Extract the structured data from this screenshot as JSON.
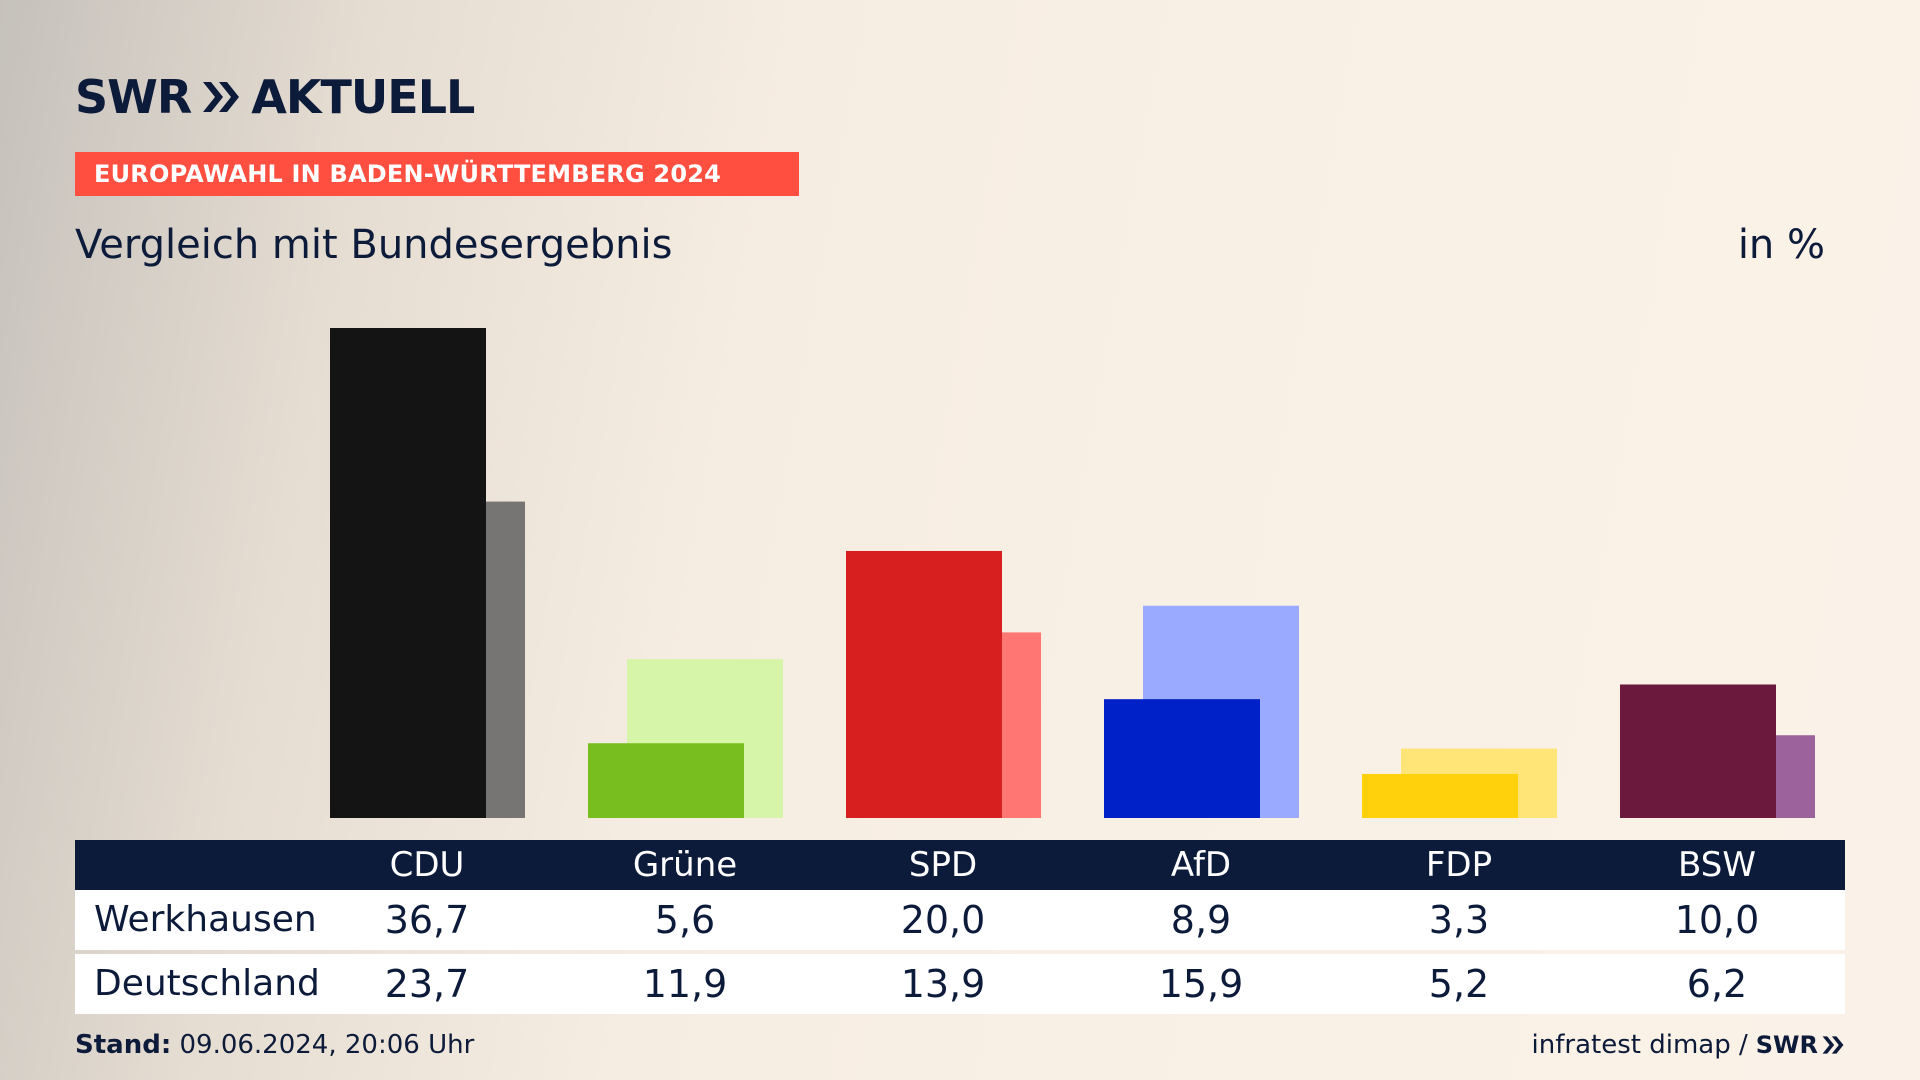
{
  "header": {
    "logo_text": "SWR",
    "logo_suffix": "AKTUELL",
    "banner": "EUROPAWAHL IN BADEN-WÜRTTEMBERG 2024",
    "subtitle": "Vergleich mit Bundesergebnis",
    "unit": "in %"
  },
  "chart_data": {
    "type": "bar",
    "title": "Vergleich mit Bundesergebnis",
    "unit": "in %",
    "categories": [
      "CDU",
      "Grüne",
      "SPD",
      "AfD",
      "FDP",
      "BSW"
    ],
    "series": [
      {
        "name": "Werkhausen",
        "values": [
          36.7,
          5.6,
          20.0,
          8.9,
          3.3,
          10.0
        ]
      },
      {
        "name": "Deutschland",
        "values": [
          23.7,
          11.9,
          13.9,
          15.9,
          5.2,
          6.2
        ]
      }
    ],
    "colors": {
      "primary": [
        "#141414",
        "#78be1e",
        "#d81f1f",
        "#0021c7",
        "#ffd00c",
        "#6b1a3e"
      ],
      "secondary": [
        "#777574",
        "#d7f5a8",
        "#ff7672",
        "#9aabff",
        "#ffe577",
        "#9c629b"
      ]
    },
    "ylim": [
      0,
      36.7
    ]
  },
  "table": {
    "rows": [
      {
        "label": "Werkhausen",
        "values": [
          "36,7",
          "5,6",
          "20,0",
          "8,9",
          "3,3",
          "10,0"
        ]
      },
      {
        "label": "Deutschland",
        "values": [
          "23,7",
          "11,9",
          "13,9",
          "15,9",
          "5,2",
          "6,2"
        ]
      }
    ]
  },
  "footer": {
    "stand_label": "Stand:",
    "stand_value": "09.06.2024, 20:06 Uhr",
    "source": "infratest dimap /",
    "source_logo": "SWR"
  },
  "colors": {
    "navy": "#0d1b3a",
    "banner": "#ff4f40"
  }
}
